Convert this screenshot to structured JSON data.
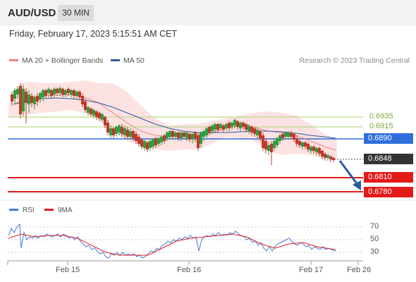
{
  "header": {
    "symbol": "AUD/USD",
    "timeframe": "30 MIN"
  },
  "datetime": "Friday, February 17, 2023 5:15:51 AM CET",
  "legend": {
    "ma20": {
      "label": "MA 20 + Bollinger Bands",
      "color": "#f08080"
    },
    "ma50": {
      "label": "MA 50",
      "color": "#2c5aa0"
    }
  },
  "copyright": "Research © 2023 Trading Central",
  "levels": {
    "r2": "0.6935",
    "r1": "0.6915",
    "pivot": "0.6890",
    "last": "0.6848",
    "s1": "0.6810",
    "s2": "0.6780"
  },
  "rsi_legend": {
    "rsi": {
      "label": "RSI",
      "color": "#4a7bd6"
    },
    "ma9": {
      "label": "9MA",
      "color": "#e02020"
    }
  },
  "rsi_ticks": {
    "t70": "70",
    "t50": "50",
    "t30": "30"
  },
  "xaxis": {
    "feb15": "Feb 15",
    "feb16": "Feb 16",
    "feb17": "Feb 17",
    "feb26": "Feb 26"
  },
  "colors": {
    "up": "#2e9e3e",
    "down": "#c0392b",
    "band": "#fde2e2",
    "pivot": "#2f6fdc",
    "support": "#e31a1a",
    "resistance": "#b7d98a"
  }
}
